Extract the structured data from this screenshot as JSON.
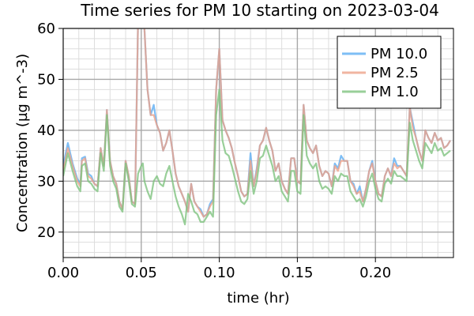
{
  "chart_data": {
    "type": "line",
    "title": "Time series for PM 10 starting on 2023-03-04",
    "xlabel": "time (hr)",
    "ylabel": "Concentration (µg m^-3)",
    "xlim": [
      0.0,
      0.25
    ],
    "ylim": [
      15,
      60
    ],
    "xticks": [
      0.0,
      0.05,
      0.1,
      0.15,
      0.2
    ],
    "xtick_labels": [
      "0.00",
      "0.05",
      "0.10",
      "0.15",
      "0.20"
    ],
    "yticks": [
      20,
      30,
      40,
      50,
      60
    ],
    "ytick_labels": [
      "20",
      "30",
      "40",
      "50",
      "60"
    ],
    "grid": true,
    "legend_position": "top-right",
    "x": [
      0.0,
      0.003,
      0.006,
      0.009,
      0.011,
      0.012,
      0.014,
      0.016,
      0.018,
      0.02,
      0.022,
      0.024,
      0.026,
      0.028,
      0.03,
      0.032,
      0.034,
      0.036,
      0.038,
      0.04,
      0.042,
      0.044,
      0.046,
      0.048,
      0.05,
      0.051,
      0.052,
      0.054,
      0.056,
      0.058,
      0.06,
      0.062,
      0.064,
      0.066,
      0.068,
      0.07,
      0.072,
      0.074,
      0.076,
      0.078,
      0.08,
      0.082,
      0.084,
      0.086,
      0.088,
      0.09,
      0.092,
      0.094,
      0.096,
      0.098,
      0.1,
      0.102,
      0.104,
      0.106,
      0.108,
      0.11,
      0.112,
      0.114,
      0.116,
      0.118,
      0.12,
      0.122,
      0.124,
      0.126,
      0.128,
      0.13,
      0.132,
      0.134,
      0.136,
      0.138,
      0.14,
      0.142,
      0.144,
      0.146,
      0.148,
      0.15,
      0.152,
      0.154,
      0.156,
      0.158,
      0.16,
      0.162,
      0.164,
      0.166,
      0.168,
      0.17,
      0.172,
      0.174,
      0.176,
      0.178,
      0.18,
      0.182,
      0.184,
      0.186,
      0.188,
      0.19,
      0.192,
      0.194,
      0.196,
      0.198,
      0.2,
      0.202,
      0.204,
      0.206,
      0.208,
      0.21,
      0.212,
      0.214,
      0.216,
      0.218,
      0.22,
      0.222,
      0.224,
      0.226,
      0.228,
      0.23,
      0.232,
      0.234,
      0.236,
      0.238,
      0.24,
      0.242,
      0.244,
      0.246,
      0.248
    ],
    "series": [
      {
        "name": "PM 10.0",
        "color": "#5eaef2",
        "values": [
          33.0,
          37.5,
          33.5,
          30.5,
          29.5,
          34.5,
          34.8,
          31.5,
          31.0,
          29.5,
          29.0,
          36.5,
          33.0,
          44.0,
          34.0,
          31.0,
          29.5,
          26.0,
          24.5,
          34.0,
          31.0,
          26.0,
          25.5,
          62.0,
          62.0,
          62.0,
          60.0,
          48.0,
          43.0,
          45.0,
          41.0,
          39.5,
          36.0,
          37.5,
          40.0,
          36.0,
          31.5,
          29.0,
          27.5,
          26.0,
          24.0,
          29.5,
          26.0,
          25.0,
          24.5,
          23.0,
          23.5,
          25.5,
          26.5,
          48.0,
          56.0,
          42.0,
          40.0,
          38.5,
          36.5,
          33.5,
          31.0,
          28.0,
          27.0,
          27.5,
          35.5,
          29.0,
          32.5,
          37.0,
          38.0,
          40.5,
          38.0,
          36.0,
          32.0,
          33.5,
          30.0,
          28.5,
          27.5,
          34.5,
          34.5,
          30.0,
          29.5,
          45.0,
          38.0,
          36.5,
          35.5,
          37.0,
          33.0,
          31.0,
          32.0,
          31.5,
          29.0,
          33.5,
          32.5,
          35.0,
          34.0,
          34.0,
          30.0,
          29.5,
          27.5,
          29.0,
          26.0,
          28.5,
          32.0,
          34.0,
          30.0,
          27.5,
          27.0,
          31.0,
          32.5,
          31.0,
          34.5,
          33.0,
          33.0,
          32.0,
          31.0,
          44.5,
          41.5,
          38.5,
          36.0,
          34.0,
          40.0,
          38.5,
          37.5,
          39.5,
          38.0,
          38.5,
          36.5,
          37.0,
          38.0
        ],
        "opacity": 0.8
      },
      {
        "name": "PM 2.5",
        "color": "#eea38a",
        "values": [
          32.0,
          36.5,
          33.0,
          30.0,
          29.0,
          34.0,
          34.5,
          31.0,
          30.5,
          29.5,
          29.0,
          36.5,
          33.0,
          44.0,
          34.0,
          31.0,
          29.5,
          26.0,
          24.5,
          34.0,
          31.0,
          26.0,
          25.5,
          62.0,
          62.0,
          62.0,
          60.0,
          48.0,
          43.0,
          43.0,
          41.0,
          39.5,
          36.0,
          37.5,
          40.0,
          36.0,
          31.5,
          29.0,
          27.5,
          26.0,
          24.0,
          29.5,
          26.0,
          25.0,
          24.0,
          23.0,
          23.5,
          25.0,
          26.0,
          48.0,
          56.0,
          42.0,
          40.0,
          38.5,
          36.5,
          33.5,
          31.0,
          28.0,
          27.0,
          27.5,
          34.0,
          29.0,
          32.0,
          37.0,
          38.0,
          40.5,
          38.0,
          36.0,
          32.0,
          33.5,
          30.0,
          28.5,
          27.5,
          34.5,
          34.5,
          30.0,
          29.5,
          45.0,
          38.0,
          36.5,
          35.5,
          37.0,
          33.0,
          31.0,
          32.0,
          31.5,
          29.0,
          33.0,
          32.0,
          34.0,
          34.0,
          34.0,
          30.0,
          29.0,
          27.5,
          28.0,
          26.0,
          28.5,
          32.0,
          33.5,
          30.0,
          27.5,
          27.0,
          31.0,
          32.5,
          31.0,
          33.5,
          32.5,
          33.0,
          32.0,
          31.0,
          44.5,
          40.5,
          38.5,
          36.0,
          34.0,
          40.0,
          38.5,
          37.5,
          39.5,
          38.0,
          38.5,
          36.5,
          37.0,
          38.0
        ],
        "opacity": 0.8
      },
      {
        "name": "PM 1.0",
        "color": "#7fc37f",
        "values": [
          31.0,
          35.5,
          32.0,
          29.0,
          28.0,
          33.0,
          33.5,
          30.0,
          29.5,
          28.5,
          28.0,
          35.5,
          32.0,
          43.0,
          33.0,
          30.0,
          28.5,
          25.0,
          24.0,
          33.5,
          30.0,
          25.5,
          25.0,
          31.5,
          33.0,
          33.5,
          30.0,
          28.0,
          26.5,
          30.0,
          31.0,
          29.5,
          29.0,
          31.5,
          33.0,
          30.0,
          27.0,
          25.0,
          23.5,
          21.5,
          27.5,
          26.0,
          24.0,
          23.5,
          22.0,
          22.0,
          23.0,
          24.0,
          23.0,
          43.0,
          48.0,
          38.0,
          35.5,
          35.0,
          33.0,
          30.5,
          28.0,
          26.0,
          25.5,
          26.5,
          32.0,
          27.5,
          30.0,
          34.5,
          35.0,
          37.0,
          35.0,
          33.0,
          30.0,
          31.0,
          28.0,
          27.0,
          26.0,
          32.0,
          32.0,
          28.0,
          27.5,
          43.0,
          35.0,
          33.5,
          32.5,
          33.5,
          30.0,
          28.5,
          29.0,
          28.5,
          27.5,
          31.0,
          30.0,
          31.5,
          31.0,
          31.0,
          28.0,
          27.0,
          26.0,
          26.5,
          25.0,
          27.0,
          30.0,
          31.5,
          28.5,
          26.5,
          26.0,
          29.5,
          30.5,
          29.5,
          32.0,
          31.0,
          31.0,
          30.5,
          30.0,
          41.5,
          38.0,
          36.0,
          34.0,
          32.5,
          37.5,
          36.5,
          35.5,
          37.5,
          36.0,
          36.5,
          35.0,
          35.5,
          36.0
        ],
        "opacity": 0.8
      }
    ]
  }
}
